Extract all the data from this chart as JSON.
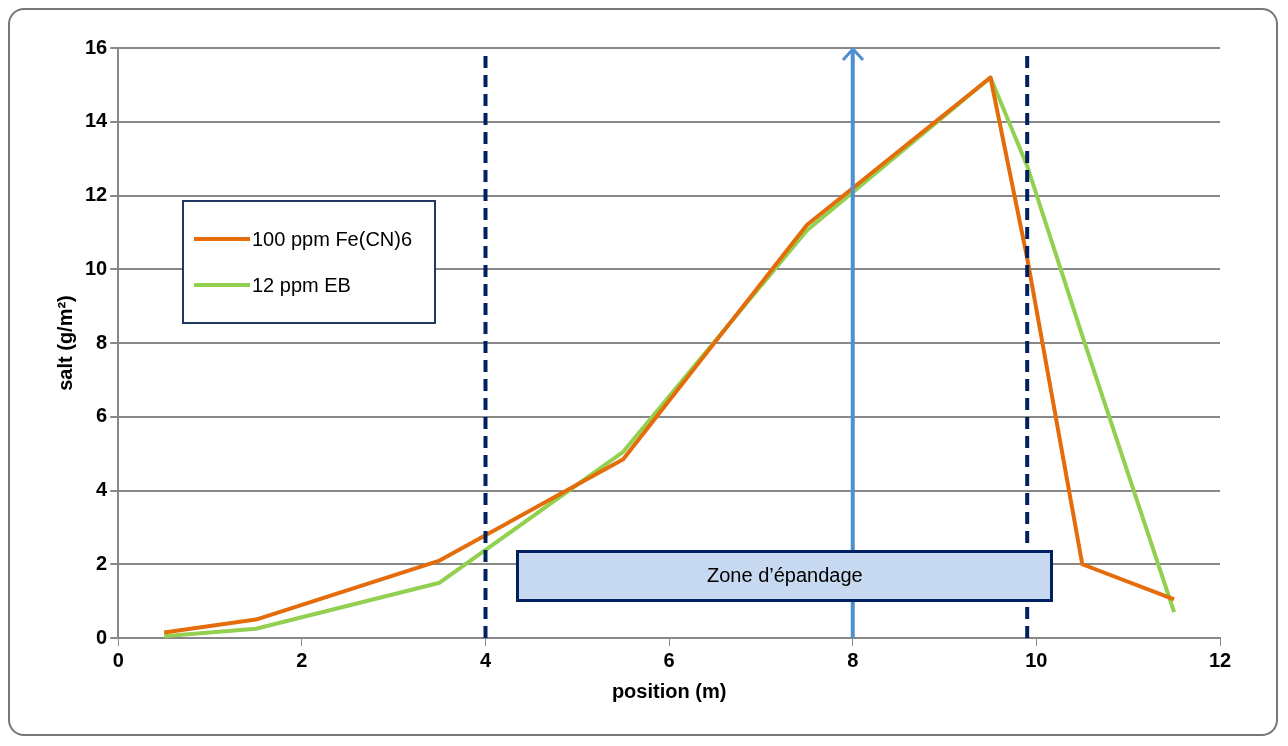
{
  "chart_data": {
    "type": "line",
    "xlabel": "position (m)",
    "ylabel": "salt (g/m²)",
    "series": [
      {
        "name": "100 ppm Fe(CN)6",
        "color": "#e46c0a",
        "x": [
          0.5,
          1.5,
          3.5,
          5.5,
          7.5,
          9.5,
          9.9,
          10.5,
          11.5
        ],
        "values": [
          0.15,
          0.5,
          2.1,
          4.85,
          11.2,
          15.2,
          10.3,
          2.0,
          1.05
        ]
      },
      {
        "name": "12 ppm EB",
        "color": "#92d050",
        "x": [
          0.5,
          1.5,
          3.5,
          5.5,
          7.5,
          9.5,
          9.9,
          10.5,
          11.5
        ],
        "values": [
          0.05,
          0.25,
          1.5,
          5.05,
          11.05,
          15.2,
          12.8,
          8.2,
          0.7
        ]
      }
    ],
    "xlim": [
      0,
      12
    ],
    "xticks": [
      0,
      2,
      4,
      6,
      8,
      10,
      12
    ],
    "ylim": [
      0,
      16
    ],
    "yticks": [
      0,
      2,
      4,
      6,
      8,
      10,
      12,
      14,
      16
    ],
    "ref_lines": [
      {
        "axis": "x",
        "value": 4,
        "color": "#002060",
        "line_style": "dashed"
      },
      {
        "axis": "x",
        "value": 8,
        "color": "#4f8ed0",
        "line_style": "solid"
      },
      {
        "axis": "x",
        "value": 9.9,
        "color": "#002060",
        "line_style": "dashed"
      }
    ],
    "annotations": [
      "Zone d’épandage"
    ],
    "grid": "y",
    "legend": "top left",
    "marker": "none",
    "line_style": "solid"
  }
}
